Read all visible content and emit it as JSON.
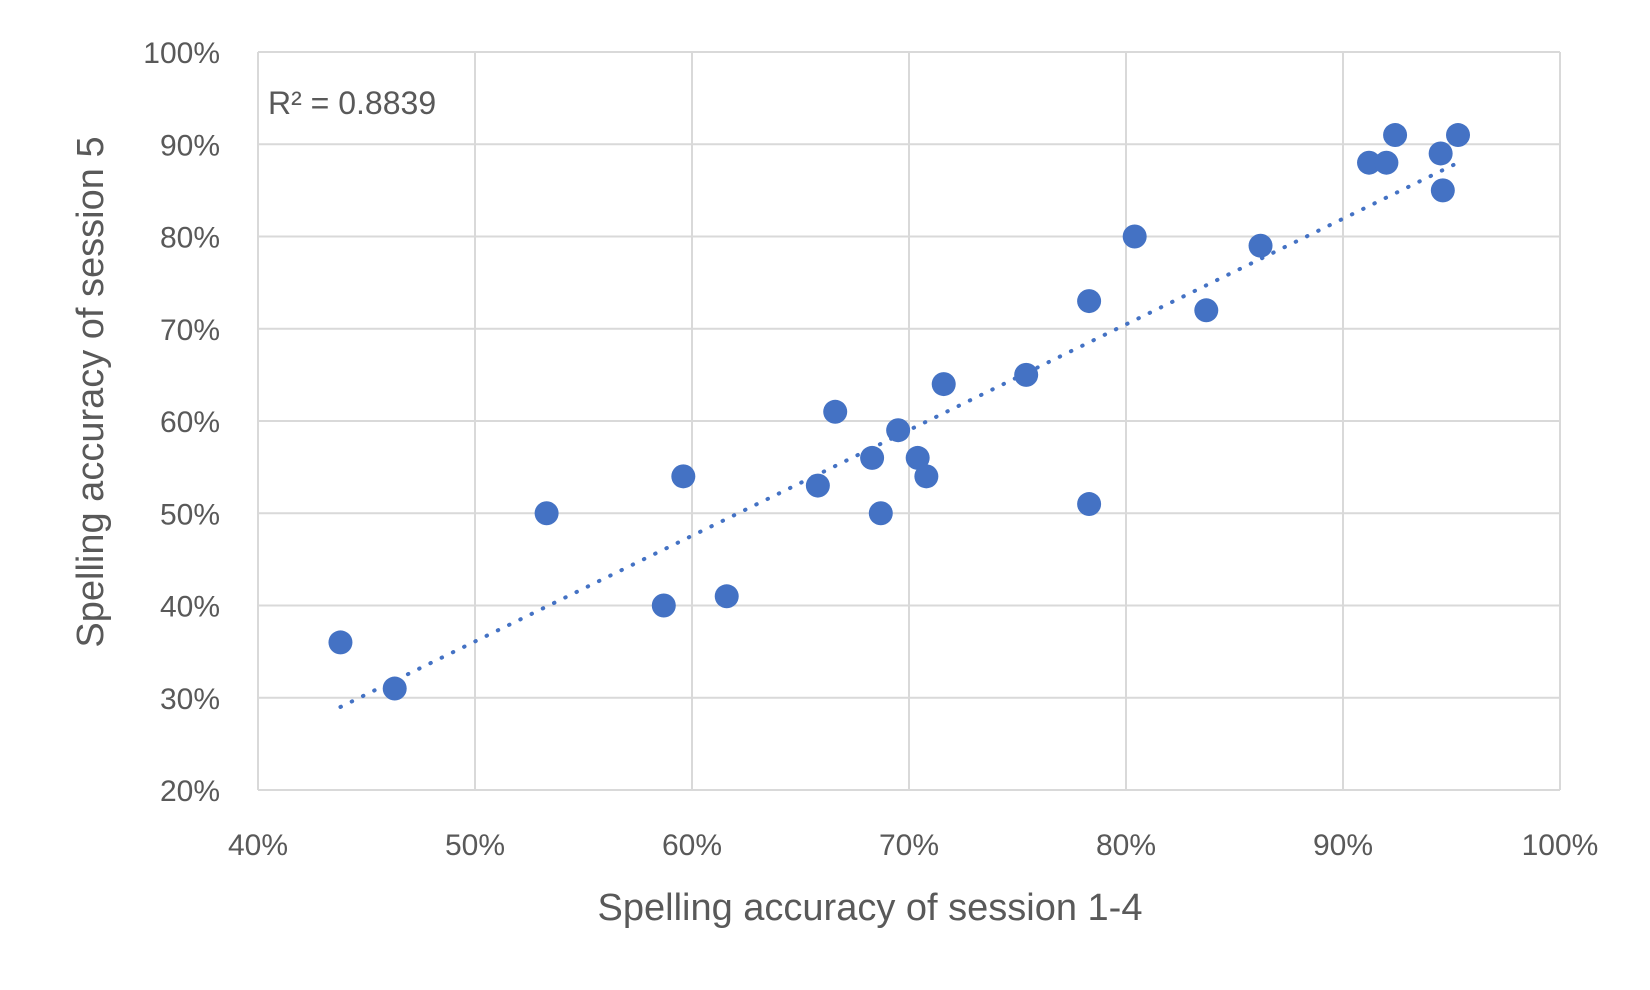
{
  "chart_data": {
    "type": "scatter",
    "xlabel": "Spelling accuracy of session 1-4",
    "ylabel": "Spelling accuracy of session 5",
    "xlim": [
      0.4,
      1.0
    ],
    "ylim": [
      0.2,
      1.0
    ],
    "x_ticks": [
      0.4,
      0.5,
      0.6,
      0.7,
      0.8,
      0.9,
      1.0
    ],
    "y_ticks": [
      0.2,
      0.3,
      0.4,
      0.5,
      0.6,
      0.7,
      0.8,
      0.9,
      1.0
    ],
    "x_tick_labels": [
      "40%",
      "50%",
      "60%",
      "70%",
      "80%",
      "90%",
      "100%"
    ],
    "y_tick_labels": [
      "20%",
      "30%",
      "40%",
      "50%",
      "60%",
      "70%",
      "80%",
      "90%",
      "100%"
    ],
    "grid": true,
    "annotation": "R² = 0.8839",
    "series": [
      {
        "color": "#4472C4",
        "points": [
          {
            "x": 0.438,
            "y": 0.36
          },
          {
            "x": 0.463,
            "y": 0.31
          },
          {
            "x": 0.533,
            "y": 0.5
          },
          {
            "x": 0.587,
            "y": 0.4
          },
          {
            "x": 0.596,
            "y": 0.54
          },
          {
            "x": 0.616,
            "y": 0.41
          },
          {
            "x": 0.658,
            "y": 0.53
          },
          {
            "x": 0.666,
            "y": 0.61
          },
          {
            "x": 0.683,
            "y": 0.56
          },
          {
            "x": 0.687,
            "y": 0.5
          },
          {
            "x": 0.695,
            "y": 0.59
          },
          {
            "x": 0.704,
            "y": 0.56
          },
          {
            "x": 0.708,
            "y": 0.54
          },
          {
            "x": 0.716,
            "y": 0.64
          },
          {
            "x": 0.754,
            "y": 0.65
          },
          {
            "x": 0.783,
            "y": 0.73
          },
          {
            "x": 0.783,
            "y": 0.51
          },
          {
            "x": 0.804,
            "y": 0.8
          },
          {
            "x": 0.837,
            "y": 0.72
          },
          {
            "x": 0.862,
            "y": 0.79
          },
          {
            "x": 0.912,
            "y": 0.88
          },
          {
            "x": 0.92,
            "y": 0.88
          },
          {
            "x": 0.924,
            "y": 0.91
          },
          {
            "x": 0.945,
            "y": 0.89
          },
          {
            "x": 0.946,
            "y": 0.85
          },
          {
            "x": 0.953,
            "y": 0.91
          }
        ]
      }
    ],
    "trendline": {
      "style": "dotted",
      "color": "#4472C4",
      "x": [
        0.438,
        0.953
      ],
      "y": [
        0.29,
        0.88
      ]
    }
  }
}
